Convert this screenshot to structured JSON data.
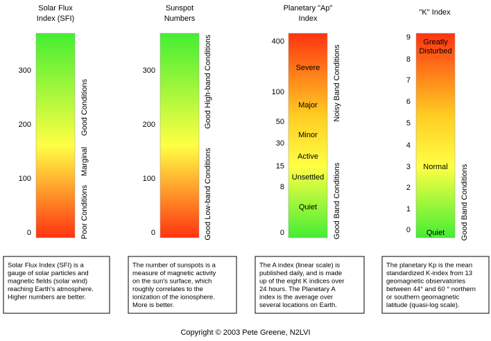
{
  "panels": [
    {
      "title": [
        "Solar Flux",
        "Index (SFI)"
      ],
      "ticks": [
        "300",
        "200",
        "100",
        "0"
      ],
      "bar_labels": [],
      "side_labels": [
        "Good Conditions",
        "Marginal",
        "Poor Conditions"
      ],
      "description": [
        "Solar Flux Index (SFI) is a",
        "gauge of solar particles and",
        "magnetic fields (solar wind)",
        "reaching Earth's atmosphere.",
        "Higher numbers are better."
      ]
    },
    {
      "title": [
        "Sunspot",
        "Numbers"
      ],
      "ticks": [
        "300",
        "200",
        "100",
        "0"
      ],
      "bar_labels": [],
      "side_labels": [
        "Good High-band Conditions",
        "Good Low-band Conditions"
      ],
      "description": [
        "The number of sunspots is a",
        "measure of magnetic activity",
        "on the sun's surface, which",
        "roughly correlates to the",
        "ionization of the ionosphere.",
        "More is better."
      ]
    },
    {
      "title": [
        "Planetary \"Ap\"",
        "Index"
      ],
      "ticks": [
        "400",
        "100",
        "50",
        "30",
        "15",
        "8",
        "0"
      ],
      "bar_labels": [
        "Severe",
        "Major",
        "Minor",
        "Active",
        "Unsettled",
        "Quiet"
      ],
      "side_labels": [
        "Noisy Band Conditions",
        "Good Band Conditions"
      ],
      "description": [
        "The A index (linear scale) is",
        "published daily, and is made",
        "up of the eight K indices over",
        "24 hours.  The Planetary A",
        "index is the average over",
        "several locations on Earth."
      ]
    },
    {
      "title": [
        "\"K\" Index"
      ],
      "ticks": [
        "9",
        "8",
        "7",
        "6",
        "5",
        "4",
        "3",
        "2",
        "1",
        "0"
      ],
      "bar_labels": [
        "Greatly",
        "Disturbed",
        "Normal",
        "Quiet"
      ],
      "side_labels": [
        "Good Band Conditions"
      ],
      "description": [
        "The planetary Kp is the mean",
        "standardized K-index from 13",
        "geomagnetic observatories",
        "between 44° and 60 ° northern",
        "or southern geomagnetic",
        "latitude (quasi-log scale)."
      ]
    }
  ],
  "copyright": "Copyright ©  2003   Pete Greene, N2LVI"
}
